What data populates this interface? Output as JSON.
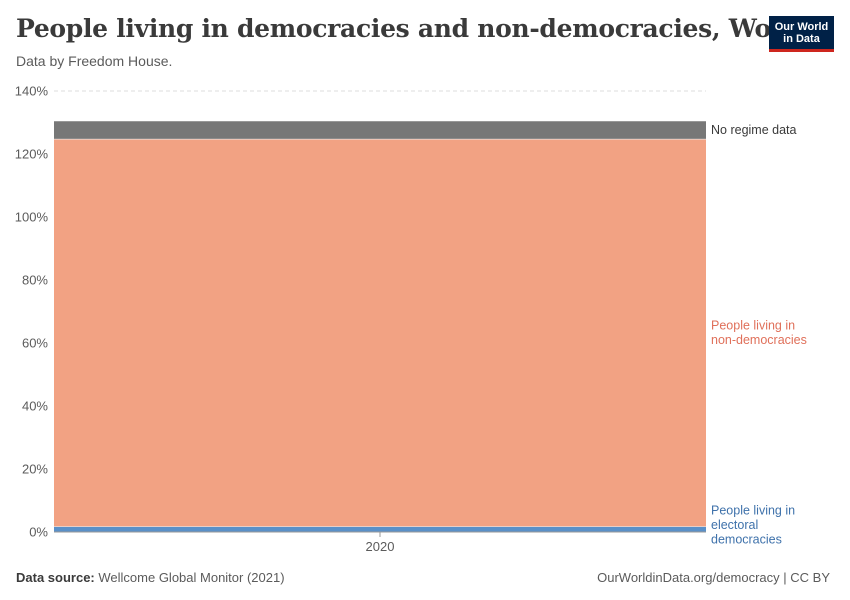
{
  "title": "People living in democracies and non-democracies, World",
  "subtitle": "Data by Freedom House.",
  "logo": {
    "line1": "Our World",
    "line2": "in Data"
  },
  "footer": {
    "source_label": "Data source:",
    "source_text": "Wellcome Global Monitor (2021)",
    "credit": "OurWorldinData.org/democracy | CC BY"
  },
  "colors": {
    "non_democracies": "#f2a283",
    "non_democracies_label": "#e0705a",
    "electoral_democracies": "#5a90c8",
    "electoral_democracies_label": "#3f72ab",
    "no_regime_data": "#777777",
    "no_regime_label": "#3a3a3a",
    "grid": "#dddddd"
  },
  "chart_data": {
    "type": "area",
    "stacked": true,
    "x": [
      2020
    ],
    "x_tick_labels": [
      "2020"
    ],
    "y_unit": "%",
    "ylim": [
      0,
      140
    ],
    "y_ticks": [
      0,
      20,
      40,
      60,
      80,
      100,
      120,
      140
    ],
    "grid": true,
    "series": [
      {
        "key": "electoral_democracies",
        "name": "People living in electoral democracies",
        "label_lines": [
          "People living in",
          "electoral",
          "democracies"
        ],
        "values": [
          1.7
        ]
      },
      {
        "key": "non_democracies",
        "name": "People living in non-democracies",
        "label_lines": [
          "People living in",
          "non-democracies"
        ],
        "values": [
          123
        ]
      },
      {
        "key": "no_regime_data",
        "name": "No regime data",
        "label_lines": [
          "No regime data"
        ],
        "values": [
          5.7
        ]
      }
    ]
  }
}
